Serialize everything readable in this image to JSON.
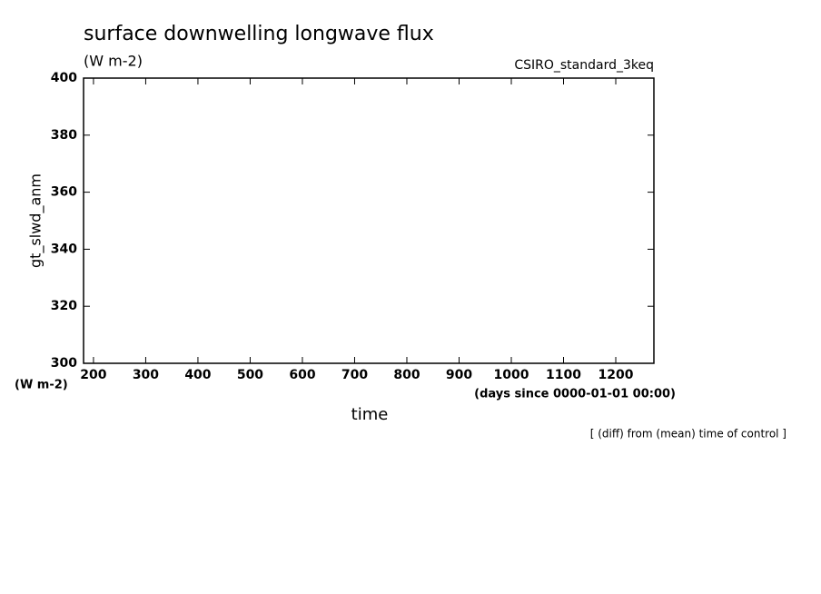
{
  "chart_data": {
    "type": "line",
    "title": "surface downwelling longwave flux",
    "subtitle": "(W m-2)",
    "annotation": "CSIRO_standard_3keq",
    "ylabel": "gt_slwd_anm",
    "yunits": "(W m-2)",
    "xlabel": "time",
    "xunits": "(days since 0000-01-01 00:00)",
    "note": "[ (diff) from (mean) time of control ]",
    "series": [],
    "xlim": [
      181,
      1273
    ],
    "xticks": [
      200,
      300,
      400,
      500,
      600,
      700,
      800,
      900,
      1000,
      1100,
      1200
    ],
    "ylim": [
      300,
      400
    ],
    "yticks": [
      300,
      320,
      340,
      360,
      380,
      400
    ]
  }
}
